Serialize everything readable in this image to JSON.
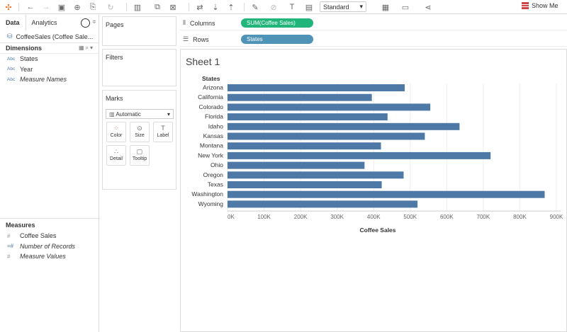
{
  "toolbar": {
    "view_select": "Standard",
    "show_me": "Show Me",
    "icons": [
      "tableau-logo-icon",
      "back-icon",
      "forward-icon",
      "save-icon",
      "new-datasource-icon",
      "paste-icon",
      "refresh-icon",
      "new-worksheet-icon",
      "duplicate-icon",
      "clear-icon",
      "swap-icon",
      "sort-ascending-icon",
      "sort-descending-icon",
      "highlight-icon",
      "group-icon",
      "label-icon",
      "fit-icon",
      "presentation-icon",
      "share-icon"
    ]
  },
  "datapane": {
    "tabs": [
      "Data",
      "Analytics"
    ],
    "datasource": "CoffeeSales (Coffee Sale...",
    "dimensions_title": "Dimensions",
    "dimensions": [
      {
        "type": "Abc",
        "name": "States",
        "italic": false
      },
      {
        "type": "Abc",
        "name": "Year",
        "italic": false
      },
      {
        "type": "Abc",
        "name": "Measure Names",
        "italic": true
      }
    ],
    "measures_title": "Measures",
    "measures": [
      {
        "type": "#",
        "name": "Coffee Sales",
        "italic": false
      },
      {
        "type": "=#",
        "name": "Number of Records",
        "italic": true
      },
      {
        "type": "#",
        "name": "Measure Values",
        "italic": true
      }
    ]
  },
  "cards": {
    "pages": "Pages",
    "filters": "Filters",
    "marks": "Marks",
    "mark_type": "Automatic",
    "mark_buttons": [
      "Color",
      "Size",
      "Label",
      "Detail",
      "Tooltip"
    ]
  },
  "shelves": {
    "columns_label": "Columns",
    "columns_pill": "SUM(Coffee Sales)",
    "rows_label": "Rows",
    "rows_pill": "States"
  },
  "sheet": {
    "title": "Sheet 1",
    "row_header": "States"
  },
  "chart_data": {
    "type": "bar",
    "orientation": "horizontal",
    "categories": [
      "Arizona",
      "California",
      "Colorado",
      "Florida",
      "Idaho",
      "Kansas",
      "Montana",
      "New York",
      "Ohio",
      "Oregon",
      "Texas",
      "Washington",
      "Wyoming"
    ],
    "values": [
      485000,
      395000,
      555000,
      438000,
      635000,
      540000,
      420000,
      720000,
      375000,
      482000,
      422000,
      868000,
      520000
    ],
    "xlabel": "Coffee Sales",
    "ylabel": "States",
    "xlim": [
      0,
      900000
    ],
    "ticks": [
      "0K",
      "100K",
      "200K",
      "300K",
      "400K",
      "500K",
      "600K",
      "700K",
      "800K",
      "900K"
    ],
    "color": "#4e79a7",
    "grid": true
  }
}
